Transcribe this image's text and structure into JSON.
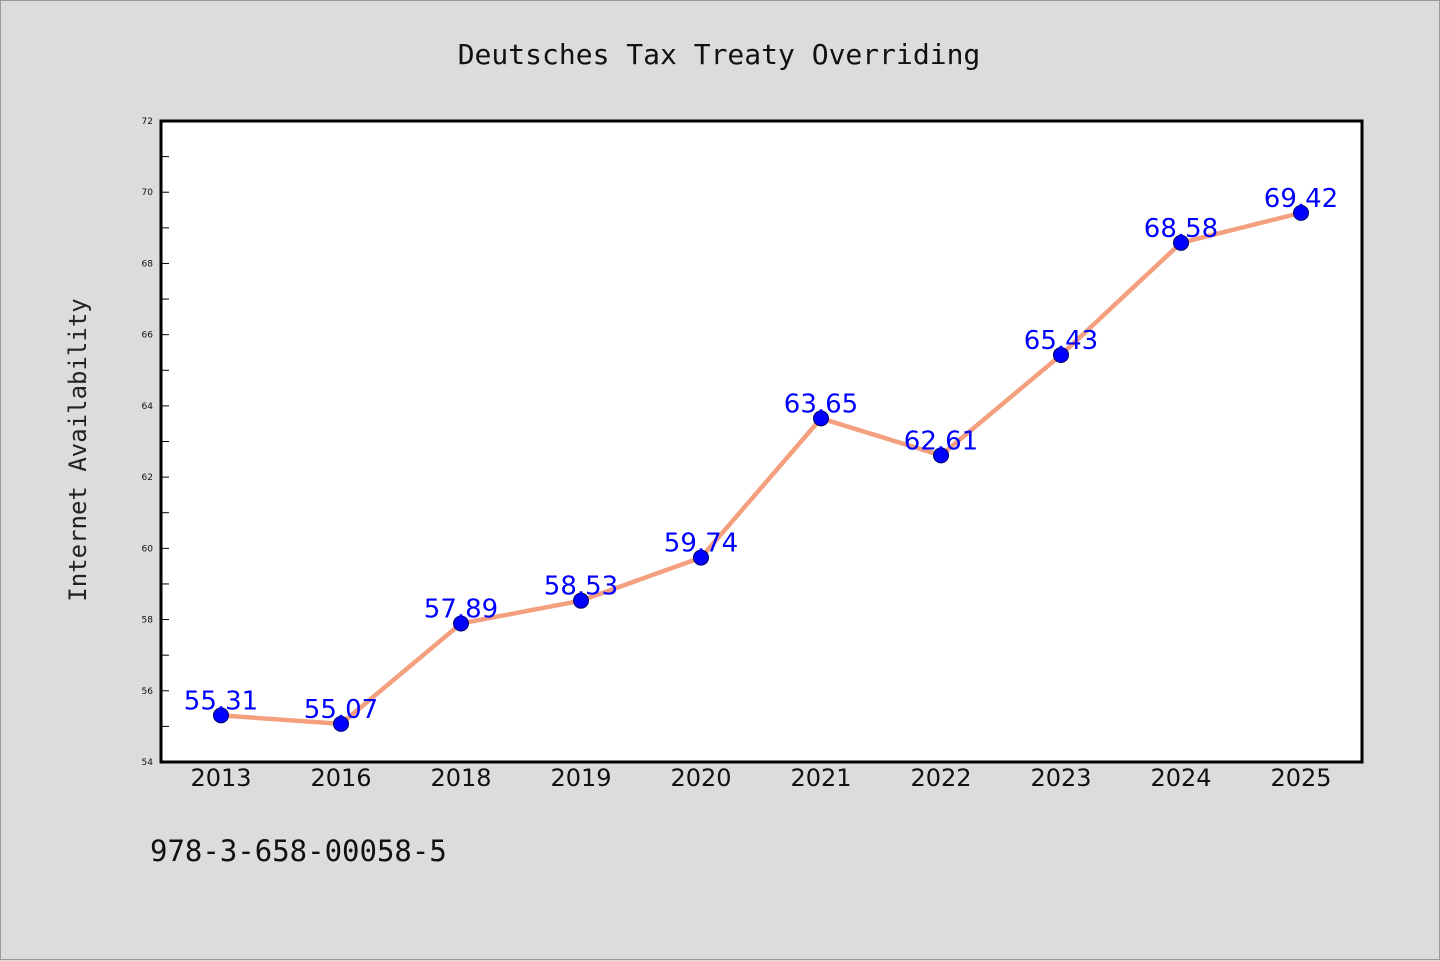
{
  "chart_data": {
    "type": "line",
    "title": "Deutsches Tax Treaty Overriding",
    "xlabel": "",
    "ylabel": "Internet Availability",
    "categories": [
      "2013",
      "2016",
      "2018",
      "2019",
      "2020",
      "2021",
      "2022",
      "2023",
      "2024",
      "2025"
    ],
    "series": [
      {
        "values": [
          55.31,
          55.07,
          57.89,
          58.53,
          59.74,
          63.65,
          62.61,
          65.43,
          68.58,
          69.42
        ],
        "data_labels": [
          "55.31",
          "55.07",
          "57.89",
          "58.53",
          "59.74",
          "63.65",
          "62.61",
          "65.43",
          "68.58",
          "69.42"
        ]
      }
    ],
    "ylim": [
      54,
      72
    ],
    "yticks": [
      54,
      56,
      58,
      60,
      62,
      64,
      66,
      68,
      70,
      72
    ],
    "ytick_labels": [
      "54",
      "56",
      "58",
      "60",
      "62",
      "64",
      "66",
      "68",
      "70",
      "72"
    ],
    "grid": false,
    "legend": false,
    "colors": {
      "line": "#f4a07e",
      "marker": "#0000ff",
      "data_label": "#0000ff",
      "background": "#dcdcdc",
      "plot_background": "#ffffff"
    }
  },
  "footer": {
    "code": "978-3-658-00058-5"
  }
}
